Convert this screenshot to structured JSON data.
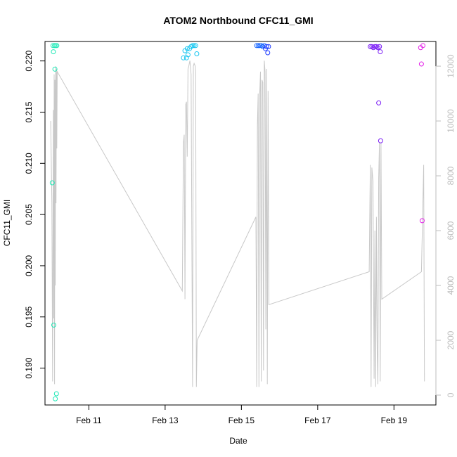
{
  "chart_data": {
    "type": "scatter",
    "title": "ATOM2 Northbound CFC11_GMI",
    "xlabel": "Date",
    "ylabel": "CFC11_GMI",
    "y2label": "",
    "x_ticks": [
      {
        "label": "Feb 11",
        "day": 11
      },
      {
        "label": "Feb 13",
        "day": 13
      },
      {
        "label": "Feb 15",
        "day": 15
      },
      {
        "label": "Feb 17",
        "day": 17
      },
      {
        "label": "Feb 19",
        "day": 19
      }
    ],
    "xlim_days": [
      9.85,
      20.1
    ],
    "y_ticks": [
      {
        "label": "0.190",
        "value": 0.19
      },
      {
        "label": "0.195",
        "value": 0.195
      },
      {
        "label": "0.200",
        "value": 0.2
      },
      {
        "label": "0.205",
        "value": 0.205
      },
      {
        "label": "0.210",
        "value": 0.21
      },
      {
        "label": "0.215",
        "value": 0.215
      },
      {
        "label": "0.220",
        "value": 0.22
      }
    ],
    "ylim": [
      0.1864,
      0.2219
    ],
    "y2_ticks": [
      {
        "label": "0",
        "value": 0
      },
      {
        "label": "2000",
        "value": 2000
      },
      {
        "label": "4000",
        "value": 4000
      },
      {
        "label": "6000",
        "value": 6000
      },
      {
        "label": "8000",
        "value": 8000
      },
      {
        "label": "10000",
        "value": 10000
      },
      {
        "label": "12000",
        "value": 12000
      }
    ],
    "y2lim": [
      -360,
      12900
    ],
    "y2_color": "#bdbdbd",
    "grid": false,
    "points": [
      {
        "x": 10.04,
        "y": 0.2081,
        "color": "#1de9b6"
      },
      {
        "x": 10.06,
        "y": 0.2215,
        "color": "#1de9b6"
      },
      {
        "x": 10.07,
        "y": 0.2209,
        "color": "#1de9b6"
      },
      {
        "x": 10.08,
        "y": 0.1942,
        "color": "#1de9b6"
      },
      {
        "x": 10.1,
        "y": 0.2215,
        "color": "#1de9b6"
      },
      {
        "x": 10.11,
        "y": 0.2192,
        "color": "#1de9b6"
      },
      {
        "x": 10.12,
        "y": 0.187,
        "color": "#1de9b6"
      },
      {
        "x": 10.13,
        "y": 0.2215,
        "color": "#1de9b6"
      },
      {
        "x": 10.15,
        "y": 0.1875,
        "color": "#1de9b6"
      },
      {
        "x": 10.16,
        "y": 0.2215,
        "color": "#1de9b6"
      },
      {
        "x": 13.48,
        "y": 0.2203,
        "color": "#18c6f0"
      },
      {
        "x": 13.52,
        "y": 0.221,
        "color": "#18c6f0"
      },
      {
        "x": 13.56,
        "y": 0.2203,
        "color": "#18c6f0"
      },
      {
        "x": 13.58,
        "y": 0.2212,
        "color": "#18c6f0"
      },
      {
        "x": 13.6,
        "y": 0.2206,
        "color": "#18c6f0"
      },
      {
        "x": 13.64,
        "y": 0.2212,
        "color": "#18c6f0"
      },
      {
        "x": 13.68,
        "y": 0.2214,
        "color": "#18c6f0"
      },
      {
        "x": 13.72,
        "y": 0.2215,
        "color": "#18c6f0"
      },
      {
        "x": 13.76,
        "y": 0.2215,
        "color": "#18c6f0"
      },
      {
        "x": 13.8,
        "y": 0.2215,
        "color": "#18c6f0"
      },
      {
        "x": 13.83,
        "y": 0.2207,
        "color": "#18c6f0"
      },
      {
        "x": 15.4,
        "y": 0.2215,
        "color": "#1565ff"
      },
      {
        "x": 15.44,
        "y": 0.2215,
        "color": "#1565ff"
      },
      {
        "x": 15.48,
        "y": 0.2215,
        "color": "#1565ff"
      },
      {
        "x": 15.52,
        "y": 0.2215,
        "color": "#1565ff"
      },
      {
        "x": 15.56,
        "y": 0.2214,
        "color": "#1565ff"
      },
      {
        "x": 15.6,
        "y": 0.2215,
        "color": "#1565ff"
      },
      {
        "x": 15.63,
        "y": 0.2212,
        "color": "#1e3cff"
      },
      {
        "x": 15.66,
        "y": 0.2214,
        "color": "#1e3cff"
      },
      {
        "x": 15.69,
        "y": 0.2208,
        "color": "#1e3cff"
      },
      {
        "x": 15.71,
        "y": 0.2214,
        "color": "#1e3cff"
      },
      {
        "x": 18.38,
        "y": 0.2214,
        "color": "#7a1cf5"
      },
      {
        "x": 18.42,
        "y": 0.2214,
        "color": "#7a1cf5"
      },
      {
        "x": 18.46,
        "y": 0.2213,
        "color": "#7a1cf5"
      },
      {
        "x": 18.5,
        "y": 0.2214,
        "color": "#7a1cf5"
      },
      {
        "x": 18.54,
        "y": 0.2214,
        "color": "#7a1cf5"
      },
      {
        "x": 18.58,
        "y": 0.2213,
        "color": "#7a1cf5"
      },
      {
        "x": 18.6,
        "y": 0.2159,
        "color": "#7a1cf5"
      },
      {
        "x": 18.62,
        "y": 0.2214,
        "color": "#7a1cf5"
      },
      {
        "x": 18.64,
        "y": 0.2209,
        "color": "#7a1cf5"
      },
      {
        "x": 18.65,
        "y": 0.2122,
        "color": "#7a1cf5"
      },
      {
        "x": 19.7,
        "y": 0.2213,
        "color": "#e31ee8"
      },
      {
        "x": 19.72,
        "y": 0.2197,
        "color": "#e31ee8"
      },
      {
        "x": 19.74,
        "y": 0.2044,
        "color": "#e31ee8"
      },
      {
        "x": 19.76,
        "y": 0.2215,
        "color": "#e31ee8"
      }
    ],
    "altitude_series": {
      "color": "#c8c8c8",
      "axis": "y2",
      "x": [
        10.0,
        10.03,
        10.05,
        10.07,
        10.08,
        10.09,
        10.1,
        10.11,
        10.12,
        10.13,
        10.14,
        10.15,
        10.16,
        10.17,
        13.45,
        13.48,
        13.5,
        13.52,
        13.54,
        13.56,
        13.58,
        13.6,
        13.62,
        13.65,
        13.68,
        13.7,
        13.72,
        13.74,
        13.76,
        13.79,
        13.8,
        13.82,
        13.84,
        15.38,
        15.4,
        15.42,
        15.44,
        15.46,
        15.48,
        15.5,
        15.52,
        15.54,
        15.56,
        15.58,
        15.6,
        15.62,
        15.64,
        15.66,
        15.68,
        15.7,
        15.72,
        18.35,
        18.38,
        18.4,
        18.42,
        18.45,
        18.48,
        18.5,
        18.52,
        18.54,
        18.56,
        18.58,
        18.6,
        18.62,
        18.64,
        18.66,
        18.68,
        19.72,
        19.75,
        19.78,
        19.8
      ],
      "y": [
        10000,
        7000,
        500,
        10400,
        2800,
        11700,
        400,
        11500,
        4000,
        12000,
        7000,
        11900,
        9000,
        11800,
        3800,
        9200,
        9500,
        3500,
        10600,
        10700,
        8700,
        11900,
        12000,
        12200,
        11700,
        6100,
        300,
        12000,
        12100,
        12000,
        11800,
        300,
        2000,
        6500,
        300,
        9800,
        11000,
        300,
        11000,
        11800,
        500,
        11500,
        11400,
        900,
        12200,
        11800,
        2400,
        11900,
        400,
        11100,
        3300,
        4500,
        8400,
        300,
        8300,
        7800,
        600,
        6000,
        300,
        6500,
        1600,
        400,
        7900,
        9200,
        500,
        9200,
        3500,
        4500,
        6400,
        8400,
        500
      ]
    }
  }
}
